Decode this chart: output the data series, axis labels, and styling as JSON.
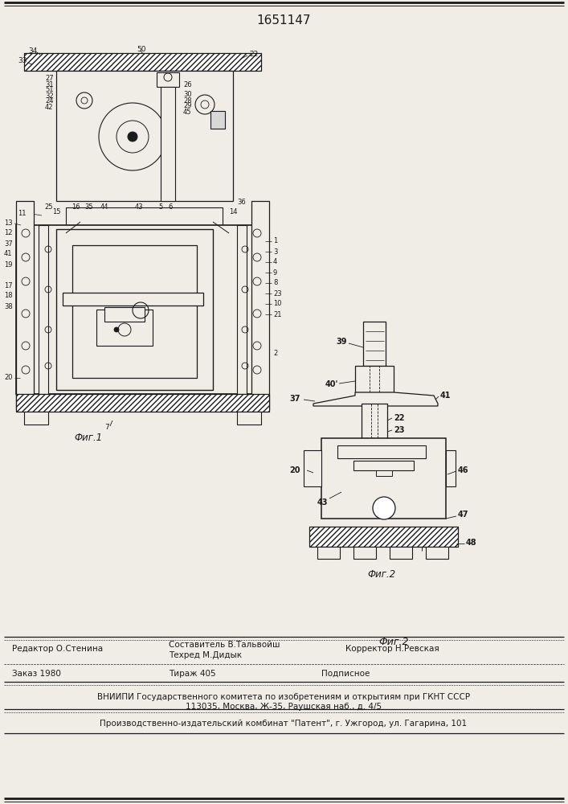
{
  "patent_number": "1651147",
  "fig1_label": "Фиг.1",
  "fig2_label": "Фиг.2",
  "bg_color": "#f0ede6",
  "line_color": "#1a1a1a",
  "editor_line": "Редактор О.Стенина",
  "composer_label": "Составитель В.Тальвойш",
  "techred_label": "Техред М.Дидык",
  "corrector_label": "Корректор Н.Ревская",
  "order_line": "Заказ 1980",
  "tirage_line": "Тираж 405",
  "podpisnoe_line": "Подписное",
  "vnipi_line": "ВНИИПИ Государственного комитета по изобретениям и открытиям при ГКНТ СССР",
  "address_line": "113035, Москва, Ж-35, Раушская наб., д. 4/5",
  "publisher_line": "Производственно-издательский комбинат \"Патент\", г. Ужгород, ул. Гагарина, 101"
}
